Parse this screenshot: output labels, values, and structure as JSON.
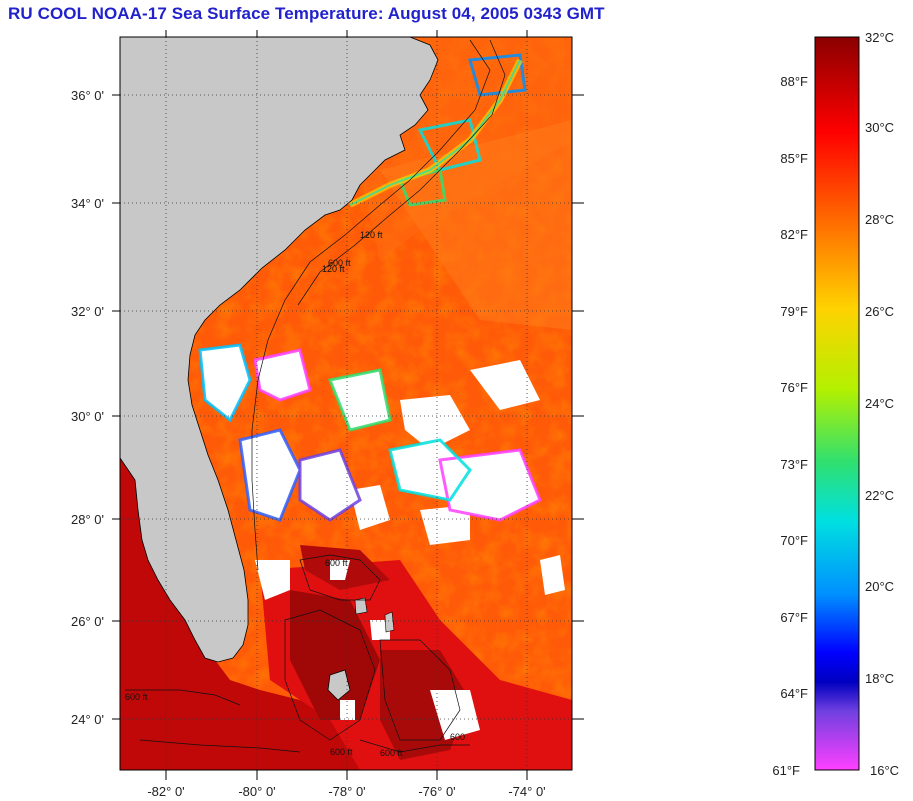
{
  "title": "RU COOL  NOAA-17  Sea Surface Temperature:  August 04, 2005 0343 GMT",
  "map": {
    "lat_labels": [
      "36° 0'",
      "34° 0'",
      "32° 0'",
      "30° 0'",
      "28° 0'",
      "26° 0'",
      "24° 0'"
    ],
    "lon_labels": [
      "-82° 0'",
      "-80° 0'",
      "-78° 0'",
      "-76° 0'",
      "-74° 0'"
    ],
    "contour_labels": [
      "120 ft",
      "600 ft",
      "120 ft",
      "600 ft",
      "600 ft",
      "600 ft",
      "600",
      "600 ft"
    ],
    "colors": {
      "land": "#c8c8c8",
      "cloud": "#ffffff",
      "warm": "#ff2a00",
      "hot": "#b00000"
    }
  },
  "colorbar": {
    "celsius_labels": [
      "32°C",
      "30°C",
      "28°C",
      "26°C",
      "24°C",
      "22°C",
      "20°C",
      "18°C",
      "16°C"
    ],
    "fahrenheit_labels": [
      "88°F",
      "85°F",
      "82°F",
      "79°F",
      "76°F",
      "73°F",
      "70°F",
      "67°F",
      "64°F",
      "61°F"
    ],
    "gradient": [
      "#8b0000",
      "#ff0000",
      "#ff7a00",
      "#ffd200",
      "#c8f000",
      "#40e060",
      "#00e0e0",
      "#0090ff",
      "#1010ff",
      "#0000c0",
      "#8040e0",
      "#ff40ff"
    ]
  }
}
